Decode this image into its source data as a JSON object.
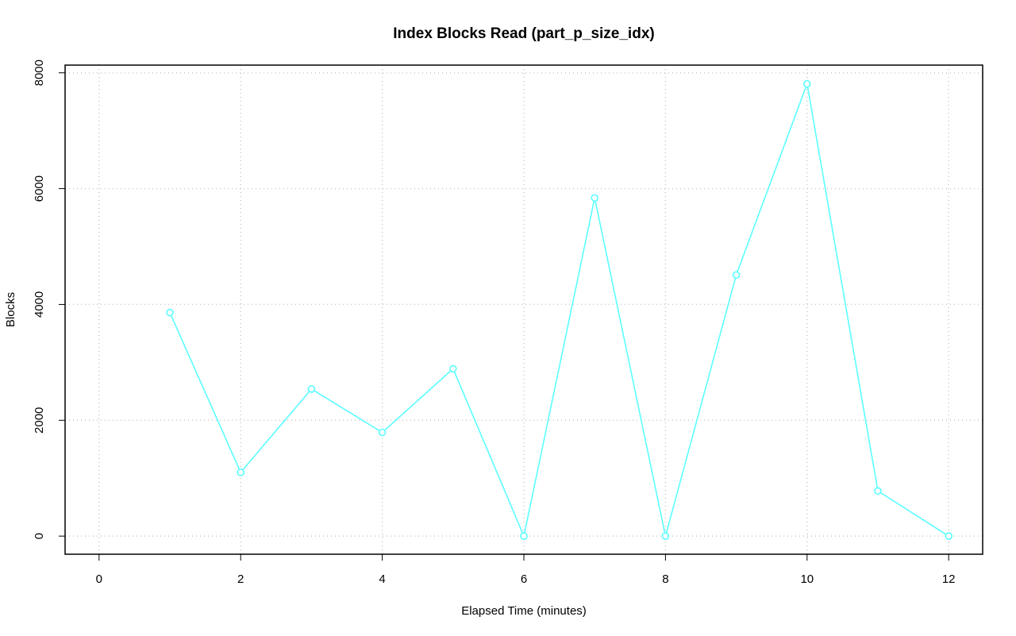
{
  "chart_data": {
    "type": "line",
    "title": "Index Blocks Read (part_p_size_idx)",
    "x_label": "Elapsed Time (minutes)",
    "y_label": "Blocks",
    "x": [
      1,
      2,
      3,
      4,
      5,
      6,
      7,
      8,
      9,
      10,
      11,
      12
    ],
    "series": [
      {
        "name": "part_p_size_idx",
        "color": "#5cffff",
        "values": [
          3860,
          1100,
          2540,
          1790,
          2890,
          0,
          5840,
          0,
          4510,
          7810,
          780,
          0
        ]
      }
    ],
    "xlim": [
      -0.48,
      12.48
    ],
    "xticks": [
      0,
      2,
      4,
      6,
      8,
      10,
      12
    ],
    "ylim": [
      -313,
      8133
    ],
    "yticks": [
      0,
      2000,
      4000,
      6000,
      8000
    ],
    "grid": true,
    "markers": true
  }
}
